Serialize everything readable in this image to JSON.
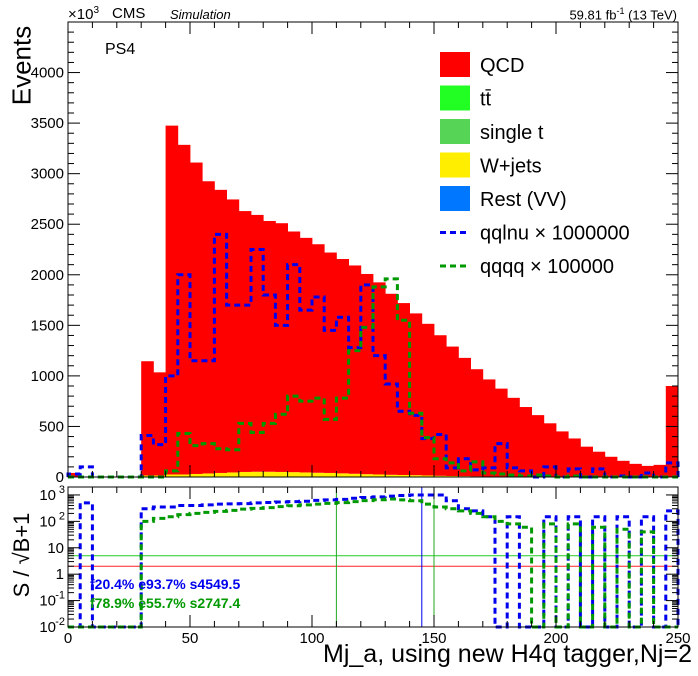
{
  "header": {
    "exponent_prefix": "×10",
    "exponent_power": "3",
    "experiment": "CMS",
    "tag": "Simulation",
    "lumi_value": "59.81 fb",
    "lumi_power": "-1",
    "lumi_energy": "(13 TeV)"
  },
  "chart_data": [
    {
      "type": "bar",
      "stacked": true,
      "category_label": "PS4",
      "ylabel": "Events",
      "xlim": [
        0,
        250
      ],
      "ylim": [
        0,
        4500
      ],
      "bin_width": 5,
      "yticks": [
        0,
        500,
        1000,
        1500,
        2000,
        2500,
        3000,
        3500,
        4000
      ],
      "legend_position": "top-right",
      "colors": {
        "qcd": "#ff0000",
        "ttbar": "#22ff22",
        "single_t": "#55d455",
        "wjets": "#ffee00",
        "rest": "#0077ff",
        "sig1": "#0000ee",
        "sig2": "#009900"
      },
      "legend": [
        {
          "label": "QCD",
          "style": "fill",
          "color": "#ff0000"
        },
        {
          "label": "tt̄",
          "style": "fill",
          "color": "#22ff22"
        },
        {
          "label": "single t",
          "style": "fill",
          "color": "#55d455"
        },
        {
          "label": "W+jets",
          "style": "fill",
          "color": "#ffee00"
        },
        {
          "label": "Rest (VV)",
          "style": "fill",
          "color": "#0077ff"
        },
        {
          "label": "qqlnu × 1000000",
          "style": "dash",
          "color": "#0000ee"
        },
        {
          "label": "qqqq × 100000",
          "style": "dash",
          "color": "#009900"
        }
      ],
      "series": [
        {
          "key": "qcd",
          "name": "QCD",
          "values": [
            40,
            0,
            0,
            0,
            0,
            0,
            1130,
            1020,
            3450,
            3260,
            3080,
            2890,
            2800,
            2700,
            2580,
            2540,
            2480,
            2460,
            2380,
            2320,
            2260,
            2180,
            2120,
            2060,
            1980,
            1900,
            1790,
            1700,
            1600,
            1500,
            1390,
            1280,
            1170,
            1060,
            960,
            870,
            780,
            690,
            610,
            530,
            450,
            380,
            300,
            250,
            200,
            160,
            130,
            110,
            120,
            900
          ]
        },
        {
          "key": "ttbar",
          "name": "tt̄",
          "values": [
            0,
            0,
            0,
            0,
            0,
            0,
            0,
            0,
            0,
            0,
            0,
            0,
            0,
            0,
            0,
            0,
            0,
            0,
            0,
            0,
            0,
            0,
            0,
            0,
            0,
            0,
            0,
            0,
            0,
            0,
            0,
            0,
            0,
            0,
            0,
            0,
            0,
            0,
            0,
            0,
            0,
            0,
            0,
            0,
            0,
            0,
            0,
            0,
            0,
            0
          ]
        },
        {
          "key": "single_t",
          "name": "single t",
          "values": [
            0,
            0,
            0,
            0,
            0,
            0,
            0,
            0,
            0,
            0,
            0,
            0,
            0,
            0,
            0,
            0,
            0,
            0,
            0,
            0,
            0,
            0,
            0,
            0,
            0,
            0,
            0,
            0,
            0,
            0,
            0,
            0,
            0,
            0,
            0,
            0,
            0,
            0,
            0,
            0,
            0,
            0,
            0,
            0,
            0,
            0,
            0,
            0,
            0,
            0
          ]
        },
        {
          "key": "wjets",
          "name": "W+jets",
          "values": [
            0,
            0,
            0,
            0,
            0,
            0,
            15,
            15,
            25,
            25,
            30,
            35,
            40,
            45,
            50,
            52,
            52,
            50,
            48,
            45,
            42,
            40,
            36,
            32,
            28,
            25,
            22,
            20,
            18,
            15,
            12,
            10,
            8,
            6,
            5,
            4,
            3,
            2,
            2,
            1,
            1,
            1,
            0,
            0,
            0,
            0,
            0,
            0,
            0,
            0
          ]
        },
        {
          "key": "rest",
          "name": "Rest (VV)",
          "values": [
            0,
            0,
            0,
            0,
            0,
            0,
            0,
            0,
            0,
            0,
            0,
            0,
            0,
            0,
            0,
            0,
            0,
            0,
            0,
            0,
            0,
            0,
            0,
            0,
            0,
            0,
            0,
            0,
            0,
            0,
            0,
            0,
            0,
            0,
            0,
            0,
            0,
            0,
            0,
            0,
            0,
            0,
            0,
            0,
            0,
            0,
            0,
            0,
            0,
            0
          ]
        }
      ],
      "signals": [
        {
          "key": "sig1",
          "name": "qqlnu × 1000000",
          "values": [
            30,
            100,
            0,
            0,
            0,
            0,
            410,
            320,
            1000,
            2000,
            1150,
            1150,
            2400,
            1700,
            1700,
            2250,
            1800,
            1500,
            2100,
            1650,
            1780,
            1450,
            1580,
            1280,
            1900,
            1200,
            920,
            650,
            610,
            380,
            420,
            90,
            180,
            70,
            90,
            330,
            90,
            60,
            0,
            100,
            0,
            80,
            0,
            80,
            0,
            10,
            0,
            40,
            0,
            140
          ]
        },
        {
          "key": "sig2",
          "name": "qqqq × 100000",
          "values": [
            0,
            0,
            0,
            0,
            0,
            0,
            0,
            0,
            60,
            430,
            310,
            330,
            280,
            270,
            530,
            440,
            530,
            620,
            800,
            750,
            780,
            570,
            780,
            1250,
            1480,
            1880,
            1960,
            1550,
            630,
            390,
            180,
            140,
            60,
            150,
            40,
            30,
            20,
            10,
            20,
            10,
            0,
            10,
            0,
            0,
            0,
            0,
            0,
            0,
            0,
            0
          ]
        }
      ]
    },
    {
      "type": "line",
      "ylabel": "S / √B+1",
      "xlabel": "Mj_a, using new H4q tagger,Nj=2",
      "xlim": [
        0,
        250
      ],
      "ylim": [
        0.01,
        2000
      ],
      "log_y": true,
      "xticks": [
        0,
        50,
        100,
        150,
        200,
        250
      ],
      "yticks": [
        {
          "value": 0.01,
          "label": "10",
          "exp": "-2"
        },
        {
          "value": 0.1,
          "label": "10",
          "exp": "-1"
        },
        {
          "value": 1,
          "label": "1",
          "exp": ""
        },
        {
          "value": 10,
          "label": "10",
          "exp": ""
        },
        {
          "value": 100,
          "label": "10",
          "exp": "2"
        },
        {
          "value": 1000,
          "label": "10",
          "exp": "3"
        }
      ],
      "reference_lines": [
        {
          "axis": "y",
          "value": 5,
          "color": "#22cc22"
        },
        {
          "axis": "y",
          "value": 2,
          "color": "#ff2222"
        }
      ],
      "cut_lines": [
        {
          "x": 110,
          "color": "#22aa22"
        },
        {
          "x": 145,
          "color": "#0000ee"
        },
        {
          "x": 150,
          "color": "#22aa22"
        }
      ],
      "annotations": [
        {
          "text": "f20.4%  e93.7%  s4549.5",
          "color": "#0000ee"
        },
        {
          "text": "f78.9%  e55.7%  s2747.4",
          "color": "#009900"
        }
      ],
      "series": [
        {
          "key": "sig1",
          "values": [
            0.01,
            500,
            0.01,
            0.01,
            0.01,
            0.01,
            300,
            350,
            350,
            400,
            400,
            420,
            450,
            460,
            470,
            500,
            520,
            540,
            560,
            580,
            620,
            650,
            680,
            750,
            800,
            850,
            900,
            950,
            1000,
            1000,
            1000,
            600,
            300,
            250,
            150,
            0.01,
            150,
            0.01,
            0.01,
            150,
            0.01,
            150,
            0.01,
            150,
            0.01,
            150,
            0.01,
            150,
            0.01,
            250
          ]
        },
        {
          "key": "sig2",
          "values": [
            0.01,
            0.01,
            0.01,
            0.01,
            0.01,
            0.01,
            100,
            130,
            150,
            180,
            200,
            220,
            240,
            260,
            290,
            310,
            330,
            360,
            390,
            420,
            450,
            480,
            510,
            560,
            610,
            660,
            700,
            650,
            600,
            450,
            350,
            300,
            250,
            200,
            150,
            100,
            80,
            60,
            0.01,
            80,
            0.01,
            80,
            0.01,
            60,
            0.01,
            50,
            0.01,
            40,
            0.01,
            0.01
          ]
        }
      ]
    }
  ]
}
